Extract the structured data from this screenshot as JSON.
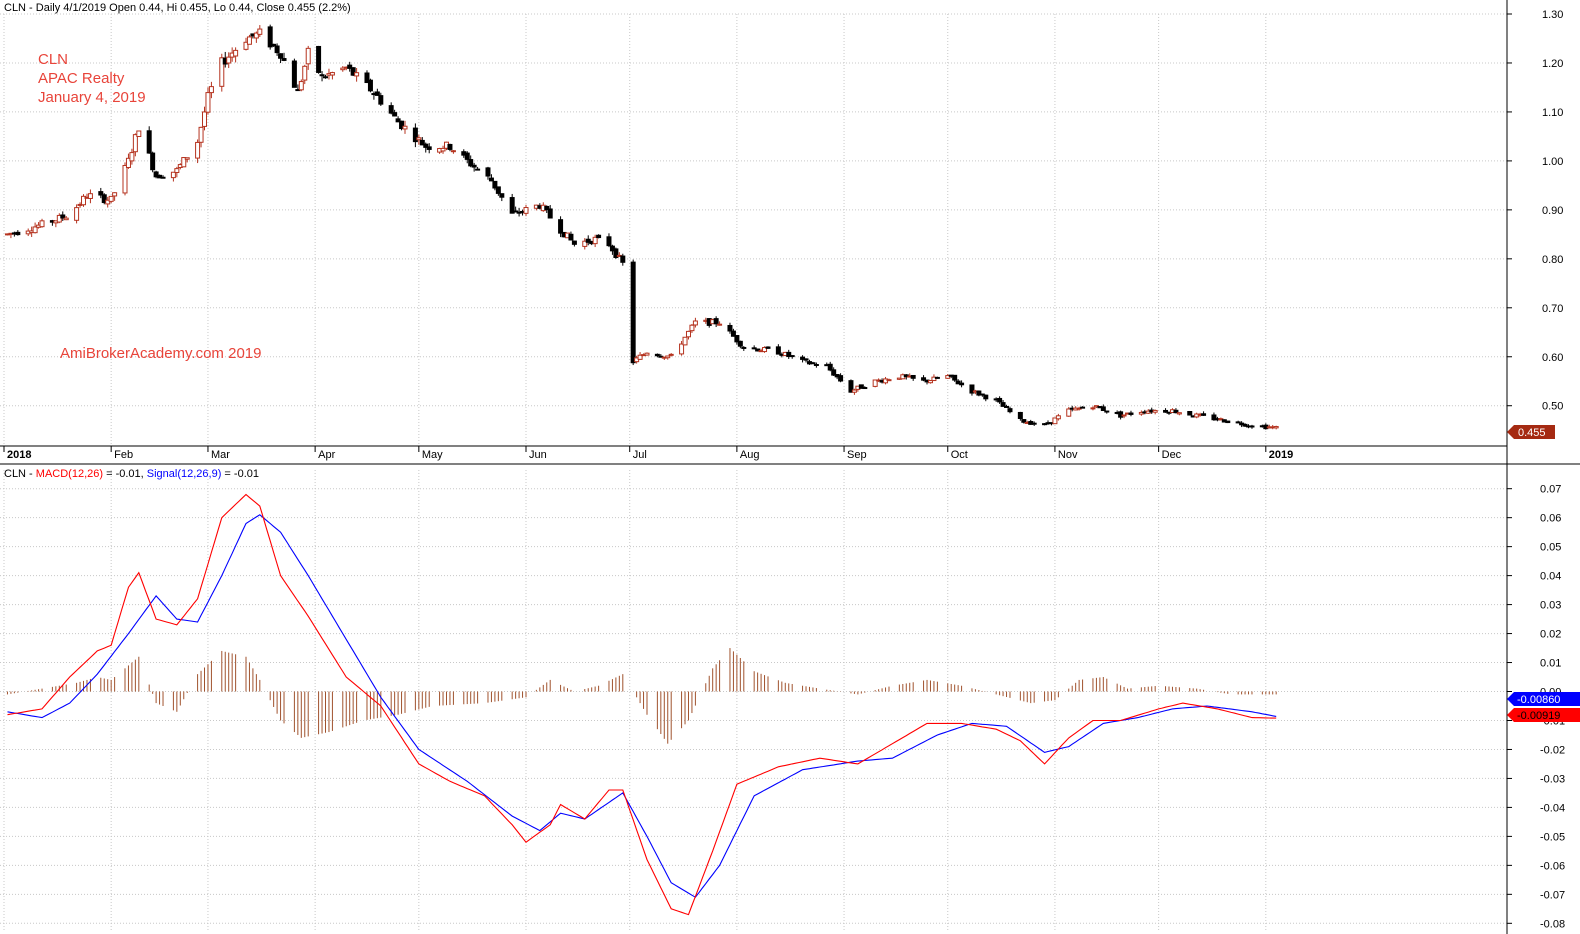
{
  "header": {
    "price_title": "CLN - Daily 4/1/2019 Open 0.44, Hi 0.455, Lo 0.44, Close 0.455 (2.2%)",
    "macd_prefix": "CLN - ",
    "macd_label": "MACD(12,26)",
    "macd_value": " = -0.01, ",
    "signal_label": "Signal(12,26,9)",
    "signal_value": " = -0.01"
  },
  "annotations": {
    "line1": "CLN",
    "line2": "APAC Realty",
    "line3": "January 4, 2019",
    "watermark": "AmiBrokerAcademy.com  2019"
  },
  "colors": {
    "up_candle": "#b5331f",
    "down_candle": "#000000",
    "macd": "#ff0000",
    "signal": "#0000ff",
    "histogram": "#a0522d",
    "annotation": "#e8443a",
    "last_price_tag": "#a52a12"
  },
  "chart_data": [
    {
      "type": "candlestick",
      "title": "CLN - Daily 4/1/2019 Open 0.44, Hi 0.455, Lo 0.44, Close 0.455 (2.2%)",
      "ylim": [
        0.43,
        1.3
      ],
      "yticks": [
        "1.30",
        "1.20",
        "1.10",
        "1.00",
        "0.90",
        "0.80",
        "0.70",
        "0.60",
        "0.50"
      ],
      "x_labels": [
        "2018",
        "Feb",
        "Mar",
        "Apr",
        "May",
        "Jun",
        "Jul",
        "Aug",
        "Sep",
        "Oct",
        "Nov",
        "Dec",
        "2019"
      ],
      "last_price": "0.455",
      "grid": true,
      "close_path": [
        [
          "2018-01-02",
          0.85
        ],
        [
          "2018-01-12",
          0.87
        ],
        [
          "2018-01-20",
          0.89
        ],
        [
          "2018-01-25",
          0.93
        ],
        [
          "2018-02-01",
          0.92
        ],
        [
          "2018-02-06",
          1.0
        ],
        [
          "2018-02-09",
          1.07
        ],
        [
          "2018-02-14",
          0.97
        ],
        [
          "2018-02-20",
          0.98
        ],
        [
          "2018-02-26",
          1.04
        ],
        [
          "2018-03-01",
          1.13
        ],
        [
          "2018-03-05",
          1.2
        ],
        [
          "2018-03-12",
          1.25
        ],
        [
          "2018-03-16",
          1.26
        ],
        [
          "2018-03-22",
          1.22
        ],
        [
          "2018-03-27",
          1.14
        ],
        [
          "2018-03-30",
          1.22
        ],
        [
          "2018-04-03",
          1.17
        ],
        [
          "2018-04-10",
          1.19
        ],
        [
          "2018-04-18",
          1.14
        ],
        [
          "2018-04-25",
          1.08
        ],
        [
          "2018-05-03",
          1.03
        ],
        [
          "2018-05-10",
          1.03
        ],
        [
          "2018-05-15",
          1.0
        ],
        [
          "2018-05-22",
          0.96
        ],
        [
          "2018-05-28",
          0.89
        ],
        [
          "2018-06-05",
          0.91
        ],
        [
          "2018-06-11",
          0.86
        ],
        [
          "2018-06-15",
          0.83
        ],
        [
          "2018-06-21",
          0.84
        ],
        [
          "2018-06-25",
          0.83
        ],
        [
          "2018-06-29",
          0.79
        ],
        [
          "2018-07-02",
          0.59
        ],
        [
          "2018-07-06",
          0.61
        ],
        [
          "2018-07-13",
          0.6
        ],
        [
          "2018-07-20",
          0.67
        ],
        [
          "2018-07-27",
          0.67
        ],
        [
          "2018-08-03",
          0.62
        ],
        [
          "2018-08-13",
          0.61
        ],
        [
          "2018-08-20",
          0.59
        ],
        [
          "2018-08-27",
          0.58
        ],
        [
          "2018-09-03",
          0.53
        ],
        [
          "2018-09-10",
          0.55
        ],
        [
          "2018-09-17",
          0.56
        ],
        [
          "2018-09-24",
          0.55
        ],
        [
          "2018-10-01",
          0.56
        ],
        [
          "2018-10-08",
          0.53
        ],
        [
          "2018-10-15",
          0.51
        ],
        [
          "2018-10-22",
          0.47
        ],
        [
          "2018-10-29",
          0.46
        ],
        [
          "2018-11-05",
          0.49
        ],
        [
          "2018-11-12",
          0.5
        ],
        [
          "2018-11-20",
          0.48
        ],
        [
          "2018-11-27",
          0.49
        ],
        [
          "2018-12-05",
          0.49
        ],
        [
          "2018-12-12",
          0.48
        ],
        [
          "2018-12-20",
          0.47
        ],
        [
          "2018-12-28",
          0.46
        ],
        [
          "2019-01-04",
          0.455
        ]
      ]
    },
    {
      "type": "line",
      "title": "CLN - MACD(12,26) = -0.01, Signal(12,26,9) = -0.01",
      "ylim": [
        -0.083,
        0.073
      ],
      "yticks": [
        "0.07",
        "0.06",
        "0.05",
        "0.04",
        "0.03",
        "0.02",
        "0.01",
        "0.00",
        "-0.01",
        "-0.02",
        "-0.03",
        "-0.04",
        "-0.05",
        "-0.06",
        "-0.07",
        "-0.08"
      ],
      "last_values": {
        "signal": "-0.00860",
        "macd": "-0.00919"
      },
      "grid": true,
      "series": [
        {
          "name": "MACD(12,26)",
          "points": [
            [
              "2018-01-02",
              -0.008
            ],
            [
              "2018-01-12",
              -0.006
            ],
            [
              "2018-01-20",
              0.005
            ],
            [
              "2018-01-28",
              0.014
            ],
            [
              "2018-02-01",
              0.016
            ],
            [
              "2018-02-06",
              0.036
            ],
            [
              "2018-02-09",
              0.041
            ],
            [
              "2018-02-14",
              0.025
            ],
            [
              "2018-02-20",
              0.023
            ],
            [
              "2018-02-26",
              0.032
            ],
            [
              "2018-03-05",
              0.06
            ],
            [
              "2018-03-12",
              0.068
            ],
            [
              "2018-03-16",
              0.064
            ],
            [
              "2018-03-22",
              0.04
            ],
            [
              "2018-03-30",
              0.026
            ],
            [
              "2018-04-10",
              0.005
            ],
            [
              "2018-04-20",
              -0.005
            ],
            [
              "2018-05-01",
              -0.025
            ],
            [
              "2018-05-10",
              -0.031
            ],
            [
              "2018-05-20",
              -0.036
            ],
            [
              "2018-05-28",
              -0.046
            ],
            [
              "2018-06-01",
              -0.052
            ],
            [
              "2018-06-08",
              -0.046
            ],
            [
              "2018-06-11",
              -0.039
            ],
            [
              "2018-06-18",
              -0.044
            ],
            [
              "2018-06-25",
              -0.034
            ],
            [
              "2018-06-29",
              -0.034
            ],
            [
              "2018-07-06",
              -0.058
            ],
            [
              "2018-07-13",
              -0.075
            ],
            [
              "2018-07-18",
              -0.077
            ],
            [
              "2018-07-25",
              -0.055
            ],
            [
              "2018-08-01",
              -0.032
            ],
            [
              "2018-08-13",
              -0.026
            ],
            [
              "2018-08-25",
              -0.023
            ],
            [
              "2018-09-05",
              -0.025
            ],
            [
              "2018-09-15",
              -0.018
            ],
            [
              "2018-09-25",
              -0.011
            ],
            [
              "2018-10-05",
              -0.011
            ],
            [
              "2018-10-15",
              -0.013
            ],
            [
              "2018-10-22",
              -0.017
            ],
            [
              "2018-10-29",
              -0.025
            ],
            [
              "2018-11-05",
              -0.016
            ],
            [
              "2018-11-12",
              -0.01
            ],
            [
              "2018-11-20",
              -0.01
            ],
            [
              "2018-12-01",
              -0.006
            ],
            [
              "2018-12-08",
              -0.004
            ],
            [
              "2018-12-18",
              -0.006
            ],
            [
              "2018-12-28",
              -0.009
            ],
            [
              "2019-01-04",
              -0.00919
            ]
          ]
        },
        {
          "name": "Signal(12,26,9)",
          "points": [
            [
              "2018-01-02",
              -0.007
            ],
            [
              "2018-01-12",
              -0.009
            ],
            [
              "2018-01-20",
              -0.004
            ],
            [
              "2018-01-28",
              0.006
            ],
            [
              "2018-02-06",
              0.02
            ],
            [
              "2018-02-14",
              0.033
            ],
            [
              "2018-02-20",
              0.025
            ],
            [
              "2018-02-26",
              0.024
            ],
            [
              "2018-03-05",
              0.04
            ],
            [
              "2018-03-12",
              0.058
            ],
            [
              "2018-03-16",
              0.061
            ],
            [
              "2018-03-22",
              0.055
            ],
            [
              "2018-03-30",
              0.04
            ],
            [
              "2018-04-10",
              0.018
            ],
            [
              "2018-04-20",
              -0.002
            ],
            [
              "2018-05-01",
              -0.02
            ],
            [
              "2018-05-15",
              -0.031
            ],
            [
              "2018-05-28",
              -0.043
            ],
            [
              "2018-06-05",
              -0.048
            ],
            [
              "2018-06-11",
              -0.042
            ],
            [
              "2018-06-18",
              -0.044
            ],
            [
              "2018-06-29",
              -0.035
            ],
            [
              "2018-07-06",
              -0.05
            ],
            [
              "2018-07-13",
              -0.066
            ],
            [
              "2018-07-20",
              -0.071
            ],
            [
              "2018-07-27",
              -0.06
            ],
            [
              "2018-08-06",
              -0.036
            ],
            [
              "2018-08-20",
              -0.027
            ],
            [
              "2018-09-05",
              -0.024
            ],
            [
              "2018-09-15",
              -0.023
            ],
            [
              "2018-09-28",
              -0.015
            ],
            [
              "2018-10-08",
              -0.011
            ],
            [
              "2018-10-18",
              -0.012
            ],
            [
              "2018-10-29",
              -0.021
            ],
            [
              "2018-11-05",
              -0.019
            ],
            [
              "2018-11-15",
              -0.011
            ],
            [
              "2018-11-25",
              -0.009
            ],
            [
              "2018-12-05",
              -0.006
            ],
            [
              "2018-12-15",
              -0.005
            ],
            [
              "2018-12-28",
              -0.007
            ],
            [
              "2019-01-04",
              -0.0086
            ]
          ]
        },
        {
          "name": "Histogram",
          "points": [
            [
              "2018-01-02",
              -0.001
            ],
            [
              "2018-01-12",
              0.001
            ],
            [
              "2018-01-22",
              0.003
            ],
            [
              "2018-01-28",
              0.005
            ],
            [
              "2018-02-01",
              0.004
            ],
            [
              "2018-02-09",
              0.012
            ],
            [
              "2018-02-14",
              -0.004
            ],
            [
              "2018-02-20",
              -0.007
            ],
            [
              "2018-02-26",
              0.006
            ],
            [
              "2018-03-05",
              0.014
            ],
            [
              "2018-03-12",
              0.012
            ],
            [
              "2018-03-16",
              0.004
            ],
            [
              "2018-03-22",
              -0.01
            ],
            [
              "2018-03-28",
              -0.016
            ],
            [
              "2018-04-05",
              -0.014
            ],
            [
              "2018-04-15",
              -0.01
            ],
            [
              "2018-04-25",
              -0.008
            ],
            [
              "2018-05-05",
              -0.005
            ],
            [
              "2018-05-20",
              -0.004
            ],
            [
              "2018-06-01",
              -0.002
            ],
            [
              "2018-06-08",
              0.004
            ],
            [
              "2018-06-15",
              0.0
            ],
            [
              "2018-06-22",
              0.002
            ],
            [
              "2018-06-29",
              0.006
            ],
            [
              "2018-07-06",
              -0.008
            ],
            [
              "2018-07-12",
              -0.018
            ],
            [
              "2018-07-18",
              -0.01
            ],
            [
              "2018-07-25",
              0.008
            ],
            [
              "2018-07-30",
              0.015
            ],
            [
              "2018-08-06",
              0.007
            ],
            [
              "2018-08-15",
              0.003
            ],
            [
              "2018-08-25",
              0.001
            ],
            [
              "2018-09-05",
              -0.001
            ],
            [
              "2018-09-15",
              0.002
            ],
            [
              "2018-09-25",
              0.004
            ],
            [
              "2018-10-05",
              0.002
            ],
            [
              "2018-10-15",
              -0.001
            ],
            [
              "2018-10-25",
              -0.004
            ],
            [
              "2018-11-01",
              -0.003
            ],
            [
              "2018-11-08",
              0.004
            ],
            [
              "2018-11-15",
              0.005
            ],
            [
              "2018-11-22",
              0.001
            ],
            [
              "2018-12-01",
              0.002
            ],
            [
              "2018-12-12",
              0.001
            ],
            [
              "2018-12-22",
              -0.001
            ],
            [
              "2019-01-04",
              -0.001
            ]
          ]
        }
      ]
    }
  ]
}
